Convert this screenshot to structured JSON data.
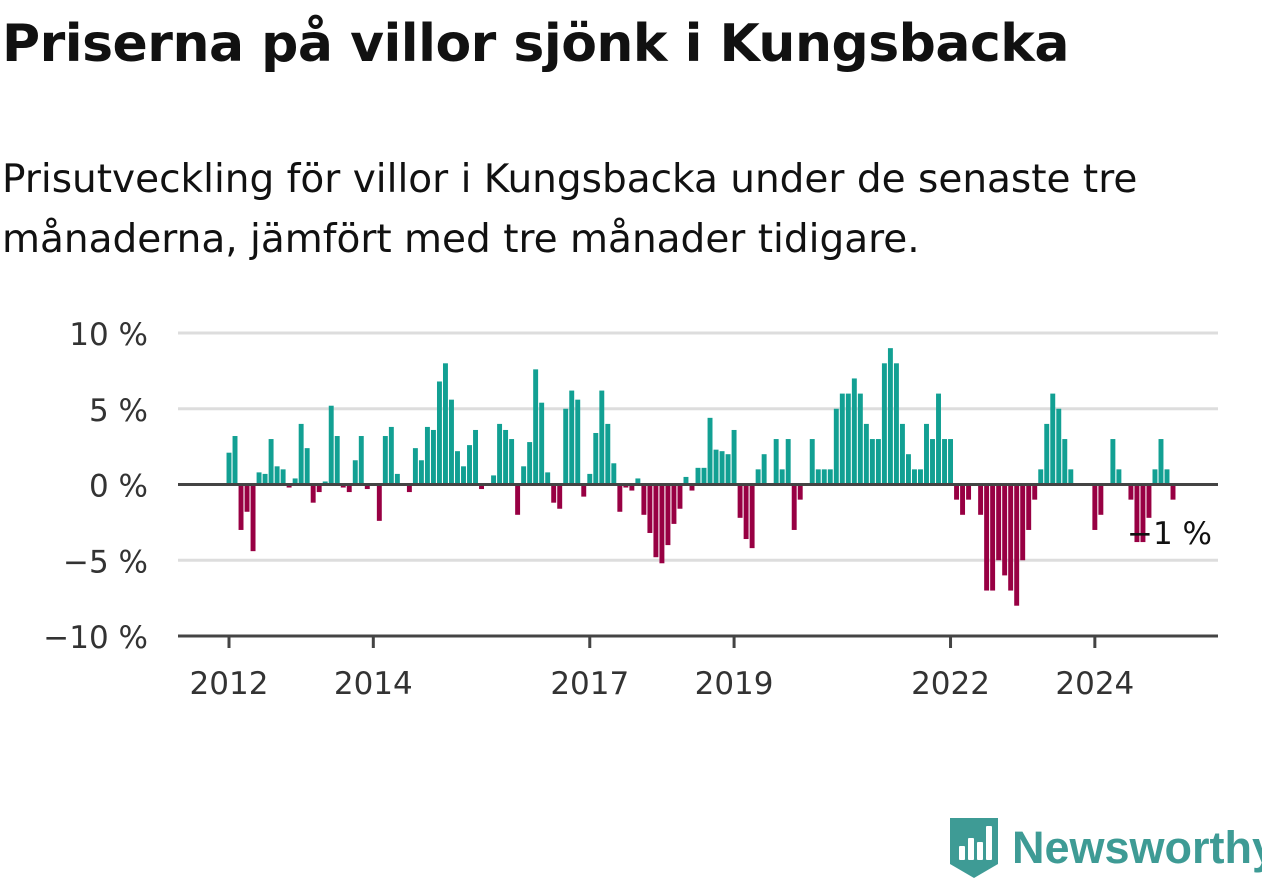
{
  "header": {
    "title": "Priserna på villor sjönk i Kungsbacka",
    "subtitle": "Prisutveckling för villor i Kungsbacka under de senaste tre månaderna, jämfört med tre månader tidigare."
  },
  "brand": {
    "name": "Newsworthy",
    "icon": "newsworthy-logo-icon",
    "color": "#3e9b95"
  },
  "colors": {
    "positive": "#12a093",
    "negative": "#980043",
    "grid": "#dddddd",
    "axis": "#444444"
  },
  "chart_data": {
    "type": "bar",
    "ylim": [
      -10,
      10
    ],
    "yticks": [
      10,
      5,
      0,
      -5,
      -10
    ],
    "ytick_labels": [
      "10 %",
      "5 %",
      "0 %",
      "−5 %",
      "−10 %"
    ],
    "xticks": [
      {
        "label": "2012",
        "index": 0
      },
      {
        "label": "2014",
        "index": 24
      },
      {
        "label": "2017",
        "index": 60
      },
      {
        "label": "2019",
        "index": 84
      },
      {
        "label": "2022",
        "index": 120
      },
      {
        "label": "2024",
        "index": 144
      }
    ],
    "grid": true,
    "annotation": {
      "text": "−1 %",
      "index": 156
    },
    "values": [
      2.1,
      3.2,
      -3.0,
      -1.8,
      -4.4,
      0.8,
      0.7,
      3.0,
      1.2,
      1.0,
      -0.2,
      0.4,
      4.0,
      2.4,
      -1.2,
      -0.5,
      0.2,
      5.2,
      3.2,
      -0.2,
      -0.5,
      1.6,
      3.2,
      -0.3,
      0.0,
      -2.4,
      3.2,
      3.8,
      0.7,
      0.0,
      -0.5,
      2.4,
      1.6,
      3.8,
      3.6,
      6.8,
      8.0,
      5.6,
      2.2,
      1.2,
      2.6,
      3.6,
      -0.3,
      0.0,
      0.6,
      4.0,
      3.6,
      3.0,
      -2.0,
      1.2,
      2.8,
      7.6,
      5.4,
      0.8,
      -1.2,
      -1.6,
      5.0,
      6.2,
      5.6,
      -0.8,
      0.7,
      3.4,
      6.2,
      4.0,
      1.4,
      -1.8,
      -0.2,
      -0.4,
      0.4,
      -2.0,
      -3.2,
      -4.8,
      -5.2,
      -4.0,
      -2.6,
      -1.6,
      0.5,
      -0.4,
      1.1,
      1.1,
      4.4,
      2.3,
      2.2,
      2.0,
      3.6,
      -2.2,
      -3.6,
      -4.2,
      1.0,
      2.0,
      0.0,
      3.0,
      1.0,
      3.0,
      -3.0,
      -1.0,
      0.0,
      3.0,
      1.0,
      1.0,
      1.0,
      5.0,
      6.0,
      6.0,
      7.0,
      6.0,
      4.0,
      3.0,
      3.0,
      8.0,
      9.0,
      8.0,
      4.0,
      2.0,
      1.0,
      1.0,
      4.0,
      3.0,
      6.0,
      3.0,
      3.0,
      -1.0,
      -2.0,
      -1.0,
      0.0,
      -2.0,
      -7.0,
      -7.0,
      -5.0,
      -6.0,
      -7.0,
      -8.0,
      -5.0,
      -3.0,
      -1.0,
      1.0,
      4.0,
      6.0,
      5.0,
      3.0,
      1.0,
      0.0,
      0.0,
      0.0,
      -3.0,
      -2.0,
      0.0,
      3.0,
      1.0,
      0.0,
      -1.0,
      -3.8,
      -3.8,
      -2.2,
      1.0,
      3.0,
      1.0,
      -1.0
    ]
  }
}
